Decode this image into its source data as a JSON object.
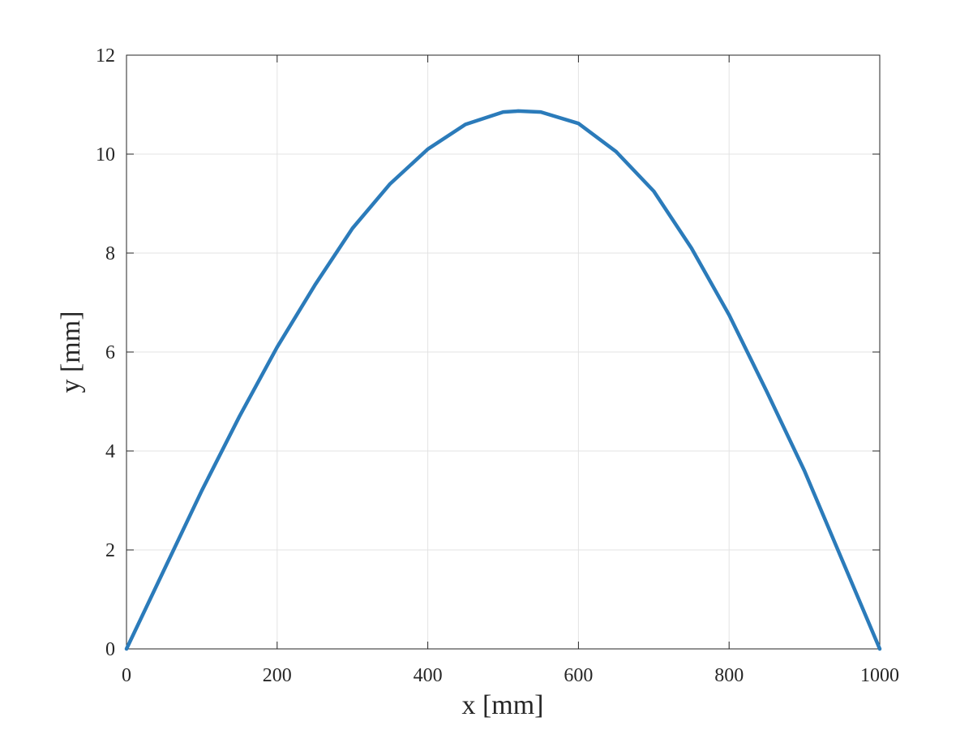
{
  "chart_data": {
    "type": "line",
    "x_label": "x [mm]",
    "y_label": "y [mm]",
    "x": [
      0,
      50,
      100,
      150,
      200,
      250,
      300,
      350,
      400,
      450,
      500,
      520,
      550,
      600,
      650,
      700,
      750,
      800,
      850,
      900,
      950,
      1000
    ],
    "series": [
      {
        "color": "#2b7bba",
        "values": [
          0,
          1.6,
          3.2,
          4.7,
          6.1,
          7.35,
          8.5,
          9.4,
          10.1,
          10.6,
          10.85,
          10.87,
          10.85,
          10.62,
          10.05,
          9.25,
          8.1,
          6.75,
          5.2,
          3.6,
          1.8,
          0
        ]
      }
    ],
    "xlim": [
      0,
      1000
    ],
    "ylim": [
      0,
      12
    ],
    "xticks": [
      0,
      200,
      400,
      600,
      800,
      1000
    ],
    "yticks": [
      0,
      2,
      4,
      6,
      8,
      10,
      12
    ],
    "grid": true
  }
}
